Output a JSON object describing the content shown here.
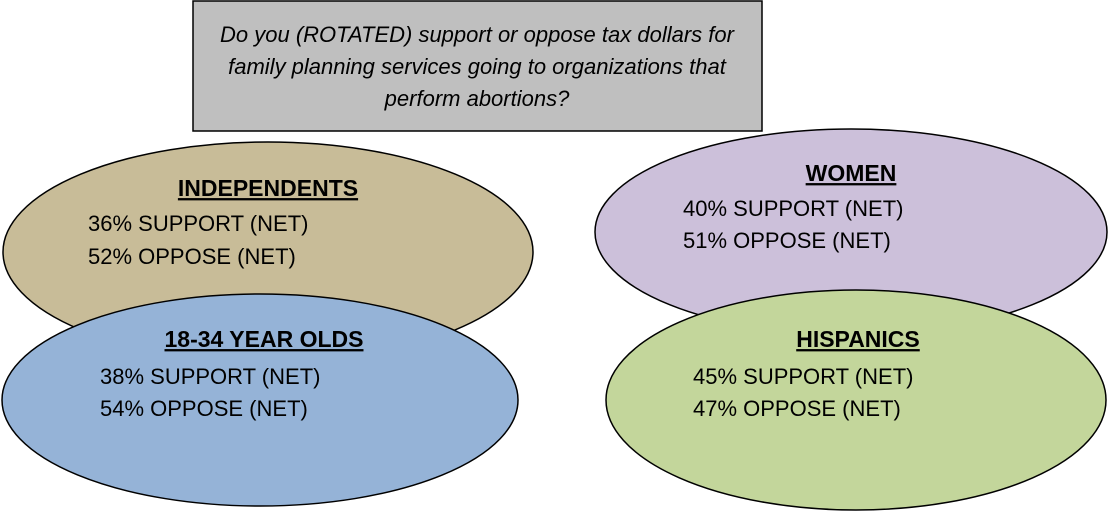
{
  "question": [
    "Do you (ROTATED) support or oppose tax dollars for",
    "family planning services going to organizations that",
    "perform abortions?"
  ],
  "groups": [
    {
      "title": "INDEPENDENTS",
      "lines": [
        "36% SUPPORT (NET)",
        "52% OPPOSE (NET)"
      ]
    },
    {
      "title": "WOMEN",
      "lines": [
        "40% SUPPORT (NET)",
        "51% OPPOSE (NET)"
      ]
    },
    {
      "title": "18-34 YEAR OLDS",
      "lines": [
        "38% SUPPORT (NET)",
        "54% OPPOSE (NET)"
      ]
    },
    {
      "title": "HISPANICS",
      "lines": [
        "45% SUPPORT (NET)",
        "47% OPPOSE (NET)"
      ]
    }
  ]
}
